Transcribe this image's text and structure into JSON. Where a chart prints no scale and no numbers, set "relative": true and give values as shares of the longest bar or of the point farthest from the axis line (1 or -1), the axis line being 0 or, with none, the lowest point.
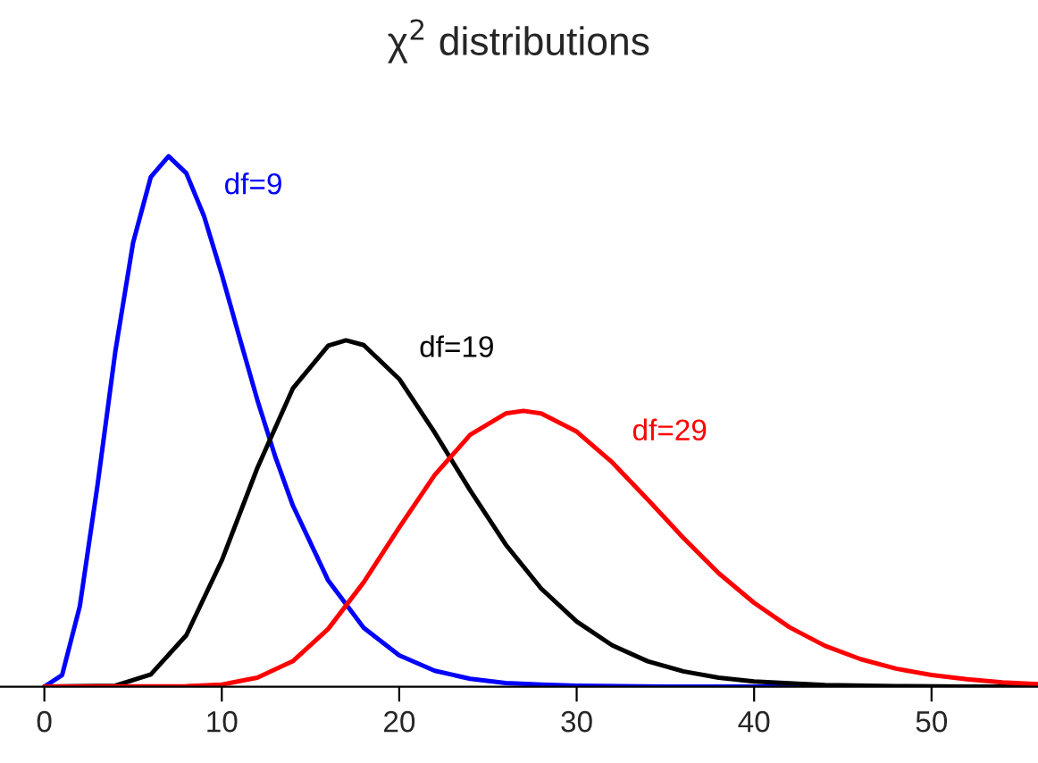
{
  "chart_data": {
    "type": "line",
    "title": "χ$^{2}$ distributions",
    "relative": true,
    "xlim": [
      -2.5,
      56
    ],
    "xticks": [
      0,
      10,
      20,
      30,
      40,
      50
    ],
    "grid": false,
    "legend": false,
    "series": [
      {
        "name": "df=9",
        "color": "#0000ff",
        "x": [
          0,
          1,
          2,
          3,
          4,
          5,
          6,
          7,
          8,
          9,
          10,
          11,
          12,
          13,
          14,
          16,
          18,
          20,
          22,
          24,
          26,
          28,
          30,
          35,
          40,
          56
        ],
        "values": [
          0,
          0.022,
          0.152,
          0.381,
          0.632,
          0.837,
          0.961,
          1,
          0.968,
          0.887,
          0.777,
          0.658,
          0.541,
          0.435,
          0.342,
          0.2,
          0.111,
          0.059,
          0.03,
          0.015,
          0.007,
          0.004,
          0.002,
          0,
          0,
          0
        ]
      },
      {
        "name": "df=19",
        "color": "#000000",
        "x": [
          0,
          4,
          6,
          8,
          10,
          12,
          14,
          16,
          17,
          18,
          20,
          22,
          24,
          26,
          28,
          30,
          32,
          34,
          36,
          38,
          40,
          44,
          48,
          52,
          56
        ],
        "values": [
          0,
          0.002,
          0.023,
          0.097,
          0.238,
          0.412,
          0.562,
          0.643,
          0.653,
          0.644,
          0.58,
          0.479,
          0.37,
          0.268,
          0.185,
          0.123,
          0.078,
          0.048,
          0.029,
          0.017,
          0.01,
          0.003,
          0.001,
          0,
          0
        ]
      },
      {
        "name": "df=29",
        "color": "#ff0000",
        "x": [
          0,
          8,
          10,
          12,
          14,
          16,
          18,
          20,
          22,
          24,
          26,
          27,
          28,
          30,
          32,
          34,
          36,
          38,
          40,
          42,
          44,
          46,
          48,
          50,
          52,
          54,
          56
        ],
        "values": [
          0,
          0.001,
          0.004,
          0.017,
          0.048,
          0.109,
          0.197,
          0.3,
          0.399,
          0.475,
          0.515,
          0.52,
          0.515,
          0.481,
          0.423,
          0.353,
          0.281,
          0.214,
          0.158,
          0.112,
          0.077,
          0.052,
          0.034,
          0.022,
          0.014,
          0.008,
          0.005
        ]
      }
    ]
  }
}
